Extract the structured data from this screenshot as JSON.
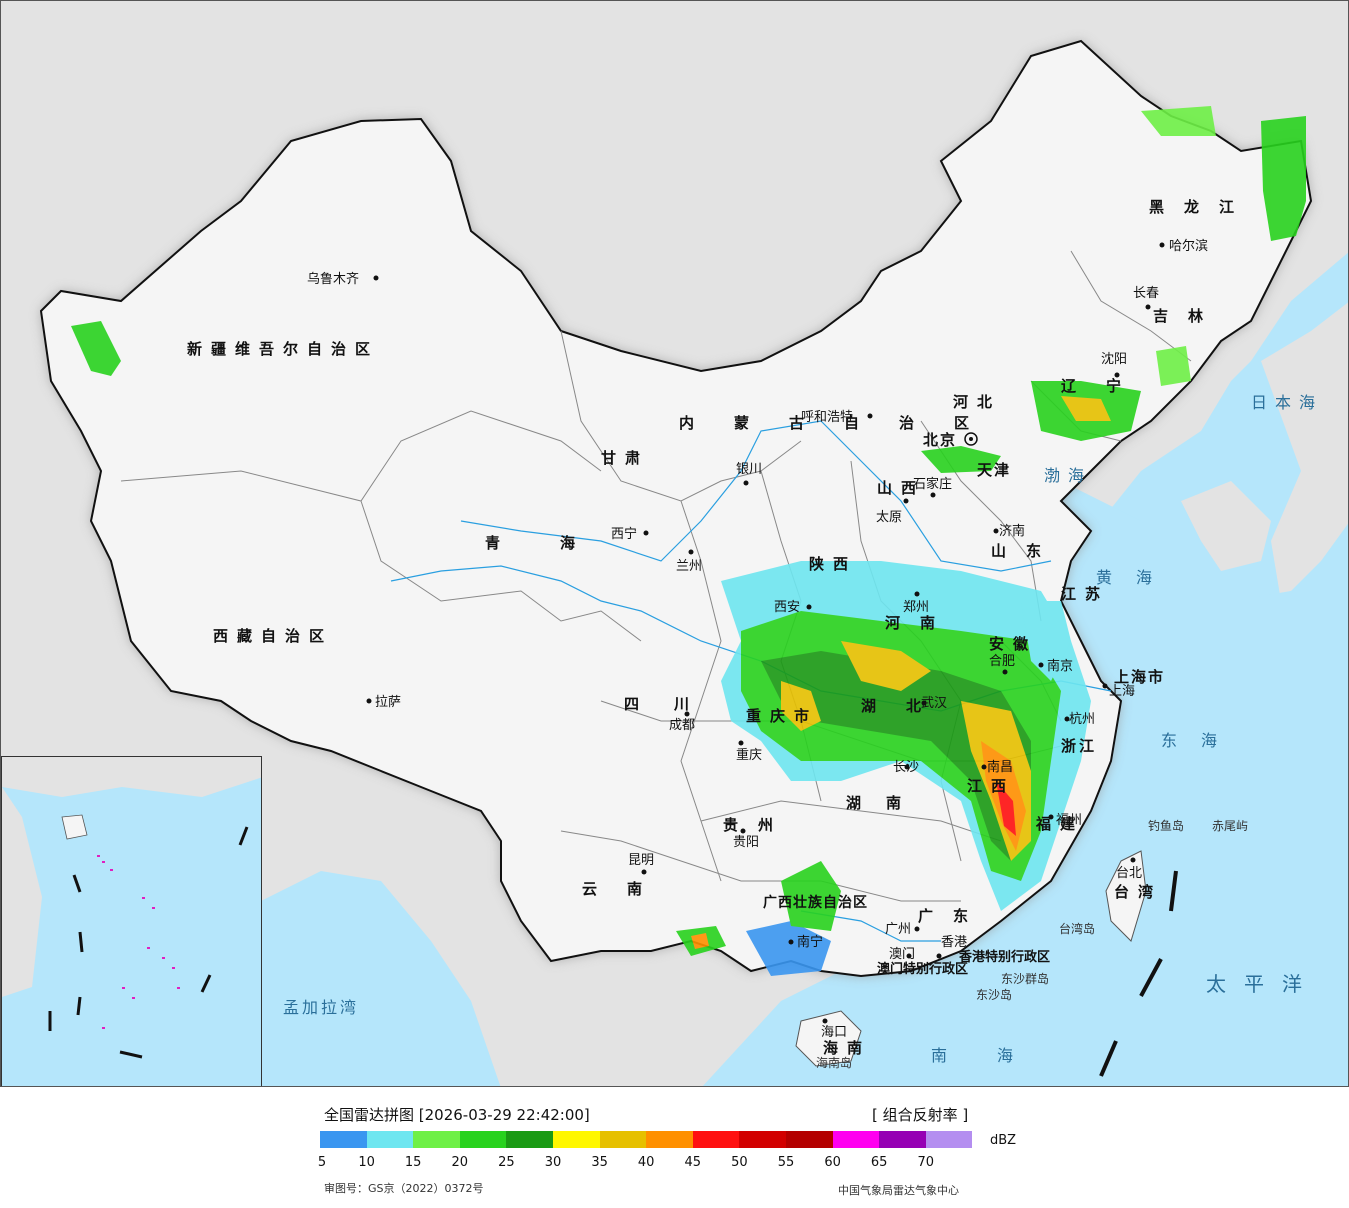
{
  "title": "全国雷达拼图 [2026-03-29 22:42:00]",
  "product": "[ 组合反射率 ]",
  "legend": {
    "unit": "dBZ",
    "colors": [
      "#3a96f0",
      "#6ee6f0",
      "#6ef046",
      "#28d21e",
      "#1a9a14",
      "#fff700",
      "#e6c000",
      "#ff9000",
      "#ff1010",
      "#d20000",
      "#b40000",
      "#ff00f0",
      "#9600b4",
      "#b48ef0"
    ],
    "ticks": [
      "5",
      "10",
      "15",
      "20",
      "25",
      "30",
      "35",
      "40",
      "45",
      "50",
      "55",
      "60",
      "65",
      "70"
    ]
  },
  "approval_number": "审图号：GS京（2022）0372号",
  "credit": "中国气象局雷达气象中心",
  "regions": [
    {
      "name": "新疆维吾尔自治区"
    },
    {
      "name": "西藏自治区"
    },
    {
      "name": "青海"
    },
    {
      "name": "甘肃"
    },
    {
      "name": "内蒙古自治区"
    },
    {
      "name": "黑龙江"
    },
    {
      "name": "吉林"
    },
    {
      "name": "辽宁"
    },
    {
      "name": "河北"
    },
    {
      "name": "山西"
    },
    {
      "name": "山东"
    },
    {
      "name": "陕西"
    },
    {
      "name": "河南"
    },
    {
      "name": "江苏"
    },
    {
      "name": "安徽"
    },
    {
      "name": "上海市"
    },
    {
      "name": "浙江"
    },
    {
      "name": "湖北"
    },
    {
      "name": "湖南"
    },
    {
      "name": "江西"
    },
    {
      "name": "福建"
    },
    {
      "name": "四川"
    },
    {
      "name": "重庆市"
    },
    {
      "name": "贵州"
    },
    {
      "name": "云南"
    },
    {
      "name": "广西壮族自治区"
    },
    {
      "name": "广东"
    },
    {
      "name": "海南"
    },
    {
      "name": "台湾"
    },
    {
      "name": "北京"
    },
    {
      "name": "天津"
    }
  ],
  "cities": [
    {
      "name": "乌鲁木齐"
    },
    {
      "name": "拉萨"
    },
    {
      "name": "西宁"
    },
    {
      "name": "兰州"
    },
    {
      "name": "银川"
    },
    {
      "name": "呼和浩特"
    },
    {
      "name": "太原"
    },
    {
      "name": "石家庄"
    },
    {
      "name": "济南"
    },
    {
      "name": "郑州"
    },
    {
      "name": "西安"
    },
    {
      "name": "成都"
    },
    {
      "name": "重庆"
    },
    {
      "name": "贵阳"
    },
    {
      "name": "昆明"
    },
    {
      "name": "南宁"
    },
    {
      "name": "广州"
    },
    {
      "name": "澳门"
    },
    {
      "name": "香港"
    },
    {
      "name": "海口"
    },
    {
      "name": "长沙"
    },
    {
      "name": "南昌"
    },
    {
      "name": "福州"
    },
    {
      "name": "杭州"
    },
    {
      "name": "南京"
    },
    {
      "name": "合肥"
    },
    {
      "name": "武汉"
    },
    {
      "name": "上海"
    },
    {
      "name": "台北"
    },
    {
      "name": "沈阳"
    },
    {
      "name": "长春"
    },
    {
      "name": "哈尔滨"
    }
  ],
  "seas": {
    "japan_sea": "日本海",
    "bohai": "渤海",
    "yellow_sea": "黄海",
    "east_sea": "东海",
    "pacific": "太平洋",
    "south_sea": "南海",
    "bengal": "孟加拉湾"
  },
  "islands": {
    "diaoyu": "钓鱼岛",
    "chiwei": "赤尾屿",
    "dongsha_islands": "东沙群岛",
    "dongsha": "东沙岛",
    "hainan_island": "海南岛",
    "taiwan_island": "台湾岛",
    "hk_sar": "香港特别行政区",
    "macau_sar": "澳门特别行政区"
  }
}
